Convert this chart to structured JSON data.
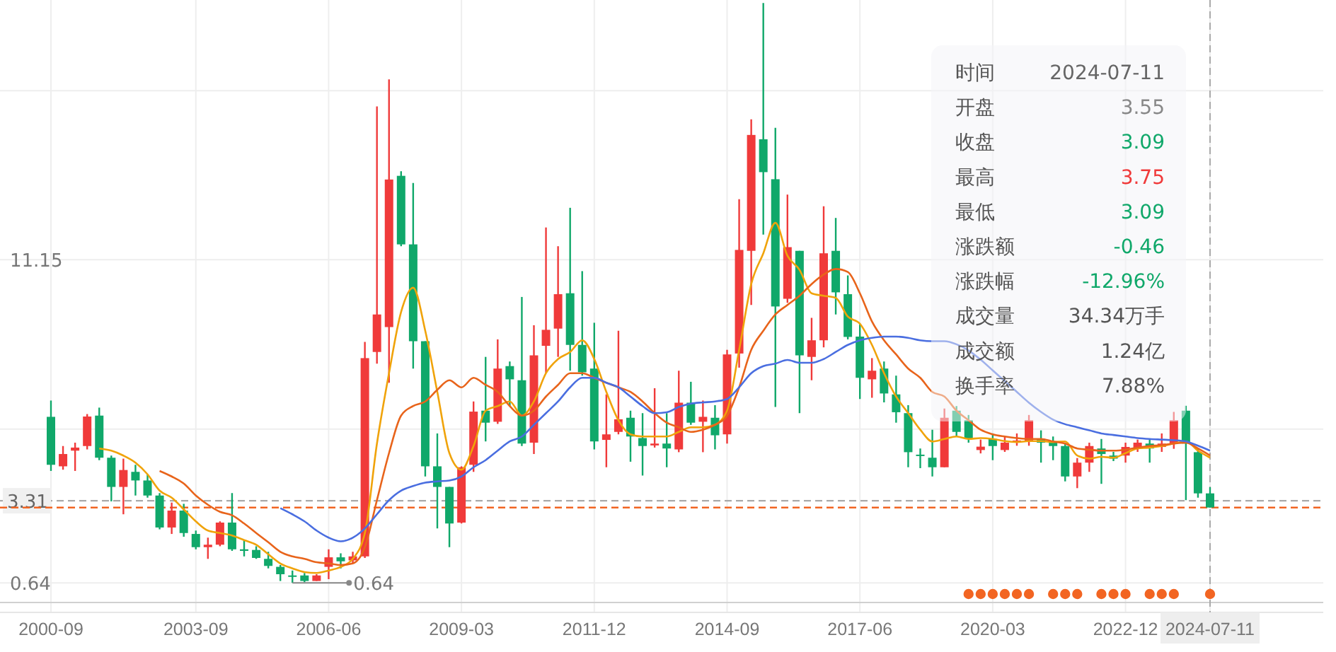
{
  "chart_data": {
    "type": "candlestick",
    "categories": [
      "2000-09",
      null,
      null,
      null,
      null,
      null,
      null,
      null,
      null,
      null,
      null,
      null,
      "2003-09",
      null,
      null,
      null,
      null,
      null,
      null,
      null,
      null,
      null,
      null,
      "2006-06",
      null,
      null,
      null,
      null,
      null,
      null,
      null,
      null,
      null,
      null,
      "2009-03",
      null,
      null,
      null,
      null,
      null,
      null,
      null,
      null,
      null,
      null,
      "2011-12",
      null,
      null,
      null,
      null,
      null,
      null,
      null,
      null,
      null,
      null,
      "2014-09",
      null,
      null,
      null,
      null,
      null,
      null,
      null,
      null,
      null,
      null,
      "2017-06",
      null,
      null,
      null,
      null,
      null,
      null,
      null,
      null,
      null,
      null,
      "2020-03",
      null,
      null,
      null,
      null,
      null,
      null,
      null,
      null,
      null,
      null,
      "2022-12",
      null,
      null,
      null,
      null,
      null,
      null,
      "2024-07-11"
    ],
    "ohlc": [
      [
        6.04,
        6.57,
        4.28,
        4.48
      ],
      [
        4.43,
        5.09,
        4.32,
        4.83
      ],
      [
        4.94,
        5.2,
        4.28,
        5.04
      ],
      [
        5.09,
        6.13,
        4.98,
        6.05
      ],
      [
        6.08,
        6.34,
        4.63,
        4.71
      ],
      [
        4.71,
        4.78,
        3.29,
        3.76
      ],
      [
        3.76,
        4.68,
        2.87,
        4.31
      ],
      [
        4.25,
        4.48,
        3.48,
        3.97
      ],
      [
        3.97,
        4.17,
        3.41,
        3.48
      ],
      [
        3.48,
        3.56,
        2.38,
        2.44
      ],
      [
        2.44,
        3.25,
        2.23,
        2.99
      ],
      [
        2.99,
        3.21,
        2.14,
        2.26
      ],
      [
        2.23,
        2.34,
        1.73,
        1.8
      ],
      [
        1.8,
        2.11,
        1.42,
        1.88
      ],
      [
        1.88,
        2.64,
        1.83,
        2.6
      ],
      [
        2.6,
        3.56,
        1.68,
        1.73
      ],
      [
        1.73,
        2.03,
        1.5,
        1.68
      ],
      [
        1.71,
        1.83,
        1.42,
        1.45
      ],
      [
        1.42,
        1.65,
        1.11,
        1.19
      ],
      [
        1.16,
        1.22,
        0.7,
        0.92
      ],
      [
        0.88,
        1.04,
        0.64,
        0.84
      ],
      [
        0.88,
        0.96,
        0.66,
        0.7
      ],
      [
        0.7,
        0.92,
        0.7,
        0.88
      ],
      [
        1.16,
        1.73,
        0.76,
        1.47
      ],
      [
        1.47,
        1.6,
        1.11,
        1.34
      ],
      [
        1.37,
        1.65,
        1.27,
        1.5
      ],
      [
        1.5,
        8.48,
        1.45,
        7.95
      ],
      [
        8.15,
        16.14,
        7.77,
        9.37
      ],
      [
        8.96,
        17.02,
        7.15,
        13.76
      ],
      [
        13.88,
        14.03,
        11.59,
        11.65
      ],
      [
        11.65,
        13.65,
        7.61,
        8.5
      ],
      [
        8.5,
        8.5,
        4.1,
        4.43
      ],
      [
        4.43,
        5.5,
        2.41,
        3.76
      ],
      [
        3.76,
        3.76,
        1.8,
        2.57
      ],
      [
        2.6,
        4.43,
        2.57,
        4.4
      ],
      [
        4.48,
        6.54,
        4.25,
        6.21
      ],
      [
        6.24,
        7.99,
        5.24,
        5.85
      ],
      [
        5.88,
        8.56,
        5.81,
        7.61
      ],
      [
        7.69,
        7.84,
        6.39,
        7.26
      ],
      [
        7.23,
        9.94,
        5.09,
        5.17
      ],
      [
        5.2,
        9.02,
        4.83,
        8.04
      ],
      [
        8.35,
        12.2,
        7.46,
        8.87
      ],
      [
        8.91,
        11.59,
        7.99,
        10.03
      ],
      [
        10.06,
        12.84,
        7.54,
        8.38
      ],
      [
        8.38,
        10.78,
        7.38,
        7.49
      ],
      [
        7.61,
        9.1,
        4.98,
        5.24
      ],
      [
        5.29,
        6.77,
        4.4,
        5.47
      ],
      [
        5.55,
        8.84,
        5.47,
        5.96
      ],
      [
        6.01,
        6.24,
        4.58,
        5.4
      ],
      [
        5.35,
        6.16,
        4.13,
        5.09
      ],
      [
        5.11,
        6.97,
        5.04,
        5.17
      ],
      [
        5.17,
        6.16,
        4.4,
        5.01
      ],
      [
        4.98,
        7.54,
        4.89,
        6.5
      ],
      [
        6.5,
        7.18,
        5.78,
        5.85
      ],
      [
        5.88,
        6.57,
        4.89,
        6.04
      ],
      [
        6.01,
        6.42,
        4.98,
        5.44
      ],
      [
        5.47,
        8.22,
        5.17,
        8.07
      ],
      [
        8.1,
        13.12,
        7.64,
        11.47
      ],
      [
        11.44,
        15.72,
        9.68,
        15.21
      ],
      [
        15.07,
        19.5,
        11.97,
        14.0
      ],
      [
        13.77,
        15.44,
        6.36,
        9.63
      ],
      [
        9.88,
        13.27,
        9.75,
        11.56
      ],
      [
        11.44,
        11.44,
        6.16,
        8.04
      ],
      [
        7.99,
        9.26,
        7.23,
        8.53
      ],
      [
        8.53,
        12.89,
        8.3,
        11.36
      ],
      [
        11.44,
        12.51,
        9.37,
        10.09
      ],
      [
        10.03,
        10.64,
        8.56,
        8.64
      ],
      [
        8.65,
        9.07,
        6.62,
        7.31
      ],
      [
        7.26,
        7.95,
        6.66,
        7.54
      ],
      [
        7.61,
        7.84,
        6.51,
        6.8
      ],
      [
        6.77,
        7.38,
        5.85,
        6.19
      ],
      [
        6.16,
        6.42,
        4.4,
        4.89
      ],
      [
        4.81,
        5.01,
        4.37,
        4.77
      ],
      [
        4.71,
        5.62,
        4.1,
        4.4
      ],
      [
        4.4,
        6.31,
        4.4,
        6.01
      ],
      [
        6.24,
        6.39,
        5.4,
        5.55
      ],
      [
        5.93,
        6.1,
        5.2,
        5.32
      ],
      [
        4.96,
        5.3,
        4.85,
        5.07
      ],
      [
        5.32,
        5.5,
        4.63,
        5.09
      ],
      [
        4.96,
        5.4,
        4.9,
        5.2
      ],
      [
        5.2,
        5.5,
        5.1,
        5.27
      ],
      [
        5.24,
        6.1,
        5.1,
        5.93
      ],
      [
        5.32,
        5.6,
        4.55,
        5.2
      ],
      [
        5.24,
        5.4,
        4.63,
        5.09
      ],
      [
        5.09,
        5.2,
        3.94,
        4.1
      ],
      [
        4.1,
        4.7,
        3.72,
        4.55
      ],
      [
        4.55,
        5.2,
        4.25,
        5.09
      ],
      [
        5.01,
        5.32,
        3.86,
        4.83
      ],
      [
        4.78,
        4.9,
        4.6,
        4.68
      ],
      [
        4.78,
        5.2,
        4.55,
        5.06
      ],
      [
        5.01,
        5.3,
        4.9,
        5.2
      ],
      [
        5.17,
        5.3,
        4.55,
        5.01
      ],
      [
        5.06,
        5.5,
        4.9,
        5.17
      ],
      [
        5.17,
        6.2,
        5.0,
        5.93
      ],
      [
        6.24,
        6.4,
        3.33,
        5.17
      ],
      [
        4.89,
        5.0,
        3.41,
        3.55
      ],
      [
        3.55,
        3.75,
        3.09,
        3.09
      ]
    ],
    "series": [
      {
        "type": "line",
        "color": "#f0a30a",
        "values": [
          null,
          null,
          null,
          null,
          5.01,
          4.94,
          4.78,
          4.55,
          4.17,
          3.64,
          3.41,
          3.03,
          2.64,
          2.34,
          2.26,
          2.18,
          2.03,
          1.88,
          1.57,
          1.27,
          1.11,
          0.99,
          0.96,
          1.04,
          1.16,
          1.42,
          2.26,
          5.17,
          7.46,
          9.45,
          10.24,
          8.84,
          6.85,
          4.86,
          4.32,
          5.09,
          6.24,
          6.39,
          6.54,
          6.08,
          6.54,
          7.46,
          7.92,
          8.15,
          8.53,
          7.92,
          6.85,
          5.93,
          5.47,
          5.4,
          5.4,
          5.4,
          5.55,
          5.7,
          5.7,
          5.78,
          6.24,
          8.22,
          10.36,
          11.36,
          12.35,
          11.28,
          10.82,
          10.06,
          9.98,
          9.91,
          9.3,
          9.07,
          8.38,
          7.46,
          6.7,
          6.16,
          5.62,
          5.24,
          5.32,
          5.4,
          5.32,
          5.35,
          5.32,
          5.25,
          5.22,
          5.25,
          5.25,
          5.22,
          5.24,
          4.78,
          4.68,
          4.74,
          4.71,
          4.86,
          5.01,
          5.04,
          5.09,
          5.17,
          5.24,
          4.94,
          4.71
        ]
      },
      {
        "type": "line",
        "color": "#e8641b",
        "values": [
          null,
          null,
          null,
          null,
          null,
          null,
          null,
          null,
          null,
          4.28,
          4.1,
          3.87,
          3.48,
          3.18,
          2.95,
          2.84,
          2.57,
          2.26,
          1.96,
          1.65,
          1.5,
          1.42,
          1.31,
          1.27,
          1.22,
          1.27,
          1.8,
          3.33,
          4.86,
          6.08,
          6.39,
          6.54,
          6.92,
          7.23,
          7.0,
          7.31,
          7.08,
          6.85,
          6.39,
          6.08,
          6.24,
          6.7,
          7.08,
          7.46,
          7.46,
          7.31,
          7.15,
          7.0,
          6.85,
          6.54,
          6.16,
          5.85,
          5.7,
          5.55,
          5.62,
          5.78,
          6.08,
          7.0,
          8.22,
          8.84,
          9.37,
          9.68,
          9.98,
          10.36,
          10.67,
          10.85,
          10.75,
          10.06,
          9.14,
          8.53,
          8.07,
          7.61,
          7.31,
          6.85,
          6.7,
          6.24,
          5.93,
          5.62,
          5.47,
          5.4,
          5.35,
          5.32,
          5.32,
          5.24,
          5.17,
          5.01,
          4.97,
          4.94,
          4.94,
          4.97,
          5.04,
          5.09,
          5.12,
          5.17,
          5.2,
          5.01,
          4.78
        ]
      },
      {
        "type": "line",
        "color": "#4a6ee0",
        "values": [
          null,
          null,
          null,
          null,
          null,
          null,
          null,
          null,
          null,
          null,
          null,
          null,
          null,
          null,
          null,
          null,
          null,
          null,
          null,
          3.07,
          2.87,
          2.64,
          2.34,
          2.11,
          1.99,
          2.11,
          2.41,
          2.87,
          3.33,
          3.64,
          3.79,
          3.9,
          3.94,
          3.97,
          4.1,
          4.4,
          4.63,
          4.94,
          5.24,
          5.4,
          5.78,
          6.16,
          6.54,
          7.0,
          7.31,
          7.31,
          7.15,
          7.0,
          6.7,
          6.39,
          6.16,
          6.19,
          6.36,
          6.47,
          6.51,
          6.54,
          6.62,
          7.0,
          7.46,
          7.69,
          7.77,
          7.89,
          7.8,
          7.8,
          7.92,
          8.15,
          8.38,
          8.53,
          8.61,
          8.65,
          8.65,
          8.61,
          8.53,
          8.5,
          8.5,
          8.4,
          8.2,
          7.9,
          7.55,
          7.2,
          6.85,
          6.5,
          6.2,
          5.95,
          5.8,
          5.7,
          5.6,
          5.5,
          5.45,
          5.4,
          5.35,
          5.32,
          5.3,
          5.28,
          5.24,
          5.1,
          4.94
        ]
      }
    ],
    "ylim": [
      0,
      19.6
    ],
    "yticks": [
      {
        "value": 16.65,
        "label": null
      },
      11.15,
      {
        "value": 5.64,
        "label": null
      },
      0.64
    ],
    "grid": true,
    "ref_lines": [
      {
        "axis": "y",
        "value": 3.31,
        "label": "3.31",
        "color": "#aaaaaa",
        "line_style": "dashed"
      },
      {
        "axis": "y",
        "value": 3.09,
        "color": "#f26522",
        "line_style": "dashed"
      },
      {
        "axis": "x",
        "value": "2024-07-11",
        "color": "#aaaaaa",
        "line_style": "dashed"
      }
    ],
    "annotations": [
      "0.64",
      "时间",
      "2024-07-11",
      "开盘",
      "3.55",
      "收盘",
      "3.09",
      "最高",
      "3.75",
      "最低",
      "3.09",
      "涨跌额",
      "-0.46",
      "涨跌幅",
      "-12.96%",
      "成交量",
      "34.34万手",
      "成交额",
      "1.24亿",
      "换手率",
      "7.88%"
    ]
  }
}
